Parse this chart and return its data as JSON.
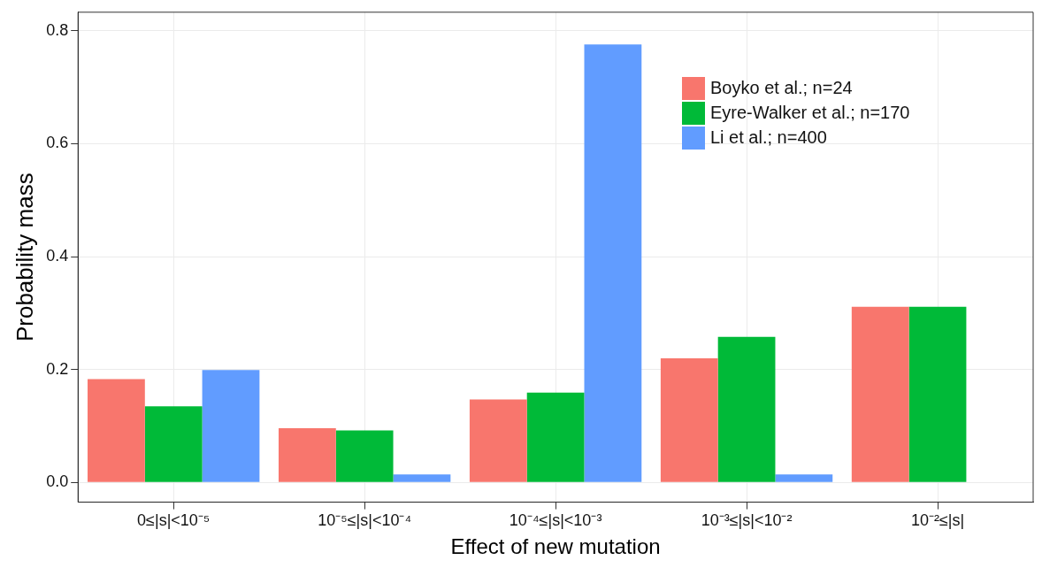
{
  "chart_data": {
    "type": "bar",
    "xlabel": "Effect of new mutation",
    "ylabel": "Probability mass",
    "categories": [
      "0≤|s|<10⁻⁵",
      "10⁻⁵≤|s|<10⁻⁴",
      "10⁻⁴≤|s|<10⁻³",
      "10⁻³≤|s|<10⁻²",
      "10⁻²≤|s|"
    ],
    "series": [
      {
        "name": "Boyko et al.; n=24",
        "color": "#f8766d",
        "values": [
          0.183,
          0.096,
          0.147,
          0.22,
          0.311
        ]
      },
      {
        "name": "Eyre-Walker et al.; n=170",
        "color": "#00ba38",
        "values": [
          0.135,
          0.092,
          0.159,
          0.258,
          0.311
        ]
      },
      {
        "name": "Li et al.; n=400",
        "color": "#619cff",
        "values": [
          0.199,
          0.014,
          0.776,
          0.014,
          null
        ]
      }
    ],
    "ylim": [
      -0.035,
      0.833
    ],
    "yticks": [
      {
        "value": 0,
        "label": "0.0"
      },
      {
        "value": 0.2,
        "label": "0.2"
      },
      {
        "value": 0.4,
        "label": "0.4"
      },
      {
        "value": 0.6,
        "label": "0.6"
      },
      {
        "value": 0.8,
        "label": "0.8"
      }
    ],
    "grid": true,
    "legend": "top right"
  }
}
